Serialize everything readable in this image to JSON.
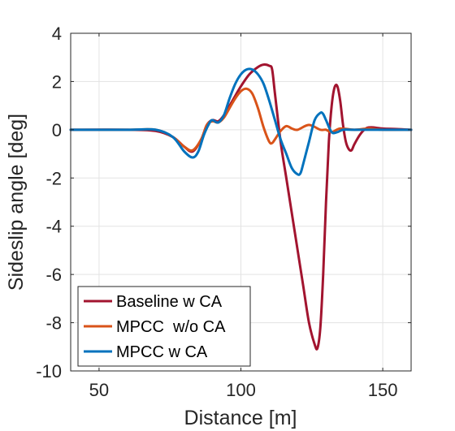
{
  "chart_data": {
    "type": "line",
    "xlabel": "Distance [m]",
    "ylabel": "Sideslip angle [deg]",
    "xlim": [
      40,
      160
    ],
    "ylim": [
      -10,
      4
    ],
    "xticks": [
      50,
      100,
      150
    ],
    "yticks": [
      -10,
      -8,
      -6,
      -4,
      -2,
      0,
      2,
      4
    ],
    "grid": true,
    "legend_position": "bottom-left",
    "series": [
      {
        "name": "Baseline w CA",
        "color": "#A2142F",
        "points": [
          [
            40,
            0
          ],
          [
            60,
            0
          ],
          [
            70,
            -0.05
          ],
          [
            76,
            -0.3
          ],
          [
            80,
            -0.7
          ],
          [
            83,
            -0.9
          ],
          [
            86,
            -0.4
          ],
          [
            88,
            0.2
          ],
          [
            90,
            0.4
          ],
          [
            92,
            0.35
          ],
          [
            94,
            0.6
          ],
          [
            97,
            1.2
          ],
          [
            100,
            1.8
          ],
          [
            103,
            2.3
          ],
          [
            106,
            2.6
          ],
          [
            108,
            2.7
          ],
          [
            110,
            2.65
          ],
          [
            111,
            2.5
          ],
          [
            112,
            1.5
          ],
          [
            114,
            -0.5
          ],
          [
            116,
            -2.0
          ],
          [
            118,
            -3.5
          ],
          [
            120,
            -5.0
          ],
          [
            122,
            -6.5
          ],
          [
            124,
            -8.0
          ],
          [
            126,
            -8.9
          ],
          [
            127,
            -9.05
          ],
          [
            128,
            -8.2
          ],
          [
            129,
            -6.0
          ],
          [
            130,
            -3.0
          ],
          [
            131,
            -0.5
          ],
          [
            132,
            1.0
          ],
          [
            133,
            1.75
          ],
          [
            134,
            1.8
          ],
          [
            135,
            1.2
          ],
          [
            136,
            0.2
          ],
          [
            137,
            -0.5
          ],
          [
            138,
            -0.8
          ],
          [
            139,
            -0.85
          ],
          [
            140,
            -0.6
          ],
          [
            142,
            -0.2
          ],
          [
            144,
            0.05
          ],
          [
            146,
            0.1
          ],
          [
            150,
            0.05
          ],
          [
            155,
            0.03
          ],
          [
            160,
            0
          ]
        ]
      },
      {
        "name": "MPCC  w/o CA",
        "color": "#D95319",
        "points": [
          [
            40,
            0
          ],
          [
            60,
            0
          ],
          [
            70,
            0
          ],
          [
            76,
            -0.3
          ],
          [
            80,
            -0.7
          ],
          [
            83,
            -0.85
          ],
          [
            86,
            -0.4
          ],
          [
            88,
            0.2
          ],
          [
            90,
            0.35
          ],
          [
            92,
            0.3
          ],
          [
            94,
            0.5
          ],
          [
            96,
            0.9
          ],
          [
            98,
            1.3
          ],
          [
            100,
            1.6
          ],
          [
            102,
            1.7
          ],
          [
            104,
            1.5
          ],
          [
            106,
            0.9
          ],
          [
            108,
            0.1
          ],
          [
            110,
            -0.5
          ],
          [
            111,
            -0.55
          ],
          [
            112,
            -0.4
          ],
          [
            114,
            -0.05
          ],
          [
            116,
            0.15
          ],
          [
            118,
            0.05
          ],
          [
            120,
            0
          ],
          [
            124,
            0.2
          ],
          [
            128,
            0
          ],
          [
            130,
            0
          ],
          [
            132,
            -0.1
          ],
          [
            135,
            0.05
          ],
          [
            140,
            0
          ],
          [
            145,
            0.05
          ],
          [
            150,
            0
          ],
          [
            160,
            0
          ]
        ]
      },
      {
        "name": "MPCC w CA",
        "color": "#0072BD",
        "points": [
          [
            40,
            0
          ],
          [
            60,
            0
          ],
          [
            70,
            0
          ],
          [
            76,
            -0.3
          ],
          [
            80,
            -0.9
          ],
          [
            83,
            -1.15
          ],
          [
            85,
            -0.9
          ],
          [
            87,
            -0.2
          ],
          [
            89,
            0.3
          ],
          [
            90,
            0.4
          ],
          [
            92,
            0.3
          ],
          [
            94,
            0.6
          ],
          [
            96,
            1.3
          ],
          [
            98,
            1.9
          ],
          [
            100,
            2.3
          ],
          [
            102,
            2.5
          ],
          [
            104,
            2.5
          ],
          [
            106,
            2.3
          ],
          [
            108,
            1.9
          ],
          [
            110,
            1.2
          ],
          [
            112,
            0.4
          ],
          [
            114,
            -0.4
          ],
          [
            116,
            -1.0
          ],
          [
            118,
            -1.6
          ],
          [
            120,
            -1.85
          ],
          [
            121,
            -1.8
          ],
          [
            122,
            -1.4
          ],
          [
            124,
            -0.5
          ],
          [
            126,
            0.4
          ],
          [
            128,
            0.7
          ],
          [
            129,
            0.65
          ],
          [
            130,
            0.4
          ],
          [
            132,
            -0.1
          ],
          [
            134,
            -0.1
          ],
          [
            136,
            0
          ],
          [
            140,
            0
          ],
          [
            150,
            0
          ],
          [
            160,
            0
          ]
        ]
      }
    ]
  }
}
